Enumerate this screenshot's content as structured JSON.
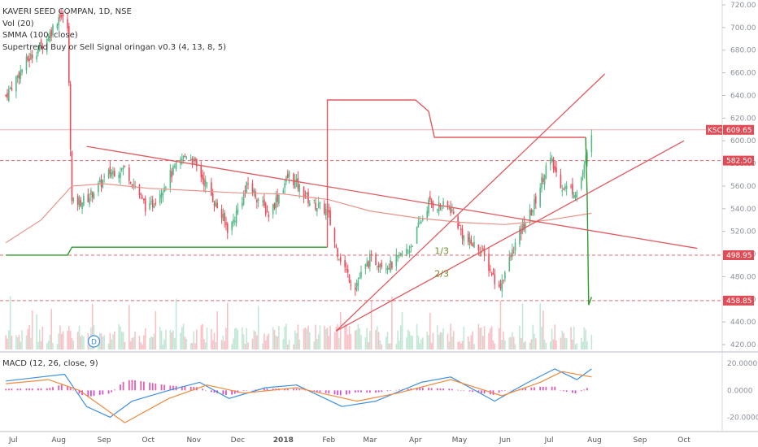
{
  "legend": {
    "title": "KAVERI SEED COMPAN, 1D, NSE",
    "vol": "Vol (20)",
    "smma": "SMMA (100, close)",
    "supertrend": "Supertrend Buy or Sell Signal oringan v0.3 (4, 13, 8, 5)"
  },
  "macd_label": "MACD (12, 26, close, 9)",
  "colors": {
    "up": "#53b987",
    "down": "#eb4d5c",
    "trendline": "#e05a5f",
    "smma": "#e8938a",
    "supertrend_up": "#2e9b2e",
    "supertrend_down": "#e05a5f",
    "macd": "#3d8fe0",
    "signal": "#f0893c",
    "hist_pos": "#e35fb0",
    "hist_neg": "#d84fd0",
    "tag_red": "#e04b55"
  },
  "annotations": {
    "fib_one_third": "1/3",
    "fib_two_third": "2/3",
    "event_marker": "D"
  },
  "price_tags": [
    {
      "label": "KSCL",
      "value": "609.65"
    },
    {
      "value": "582.50"
    },
    {
      "value": "498.95"
    },
    {
      "value": "458.85"
    }
  ],
  "chart_data": {
    "type": "candlestick",
    "symbol": "KAVERI SEED COMPAN",
    "interval": "1D",
    "exchange": "NSE",
    "x_labels": [
      "Jul",
      "Aug",
      "Sep",
      "Oct",
      "Nov",
      "Dec",
      "2018",
      "Feb",
      "Mar",
      "Apr",
      "May",
      "Jun",
      "Jul",
      "Aug",
      "Sep",
      "Oct"
    ],
    "y_ticks": [
      420,
      440,
      460,
      480,
      500,
      520,
      540,
      560,
      580,
      600,
      620,
      640,
      660,
      680,
      700,
      720
    ],
    "ylim": [
      415,
      725
    ],
    "last_price": 609.65,
    "horizontal_levels": [
      609.65,
      582.5,
      498.95,
      458.85
    ],
    "price_path": [
      [
        "2017-06-26",
        640
      ],
      [
        "2017-07-10",
        670
      ],
      [
        "2017-07-24",
        690
      ],
      [
        "2017-08-02",
        712
      ],
      [
        "2017-08-07",
        700
      ],
      [
        "2017-08-10",
        545
      ],
      [
        "2017-08-20",
        548
      ],
      [
        "2017-09-05",
        572
      ],
      [
        "2017-09-15",
        576
      ],
      [
        "2017-10-01",
        538
      ],
      [
        "2017-10-15",
        568
      ],
      [
        "2017-10-28",
        590
      ],
      [
        "2017-11-10",
        560
      ],
      [
        "2017-11-25",
        520
      ],
      [
        "2017-12-08",
        562
      ],
      [
        "2017-12-22",
        535
      ],
      [
        "2018-01-05",
        570
      ],
      [
        "2018-01-20",
        545
      ],
      [
        "2018-01-31",
        538
      ],
      [
        "2018-02-06",
        505
      ],
      [
        "2018-02-18",
        470
      ],
      [
        "2018-03-01",
        495
      ],
      [
        "2018-03-15",
        490
      ],
      [
        "2018-03-28",
        505
      ],
      [
        "2018-04-10",
        545
      ],
      [
        "2018-04-25",
        540
      ],
      [
        "2018-05-05",
        512
      ],
      [
        "2018-05-15",
        505
      ],
      [
        "2018-05-28",
        470
      ],
      [
        "2018-06-10",
        515
      ],
      [
        "2018-06-20",
        540
      ],
      [
        "2018-07-01",
        585
      ],
      [
        "2018-07-10",
        560
      ],
      [
        "2018-07-20",
        555
      ],
      [
        "2018-07-26",
        580
      ],
      [
        "2018-07-30",
        609.65
      ]
    ],
    "smma_path": [
      [
        "2017-06-26",
        510
      ],
      [
        "2017-07-20",
        530
      ],
      [
        "2017-08-10",
        560
      ],
      [
        "2017-09-01",
        562
      ],
      [
        "2017-10-01",
        558
      ],
      [
        "2017-11-01",
        556
      ],
      [
        "2017-12-01",
        554
      ],
      [
        "2018-01-01",
        553
      ],
      [
        "2018-02-01",
        548
      ],
      [
        "2018-03-01",
        538
      ],
      [
        "2018-04-01",
        532
      ],
      [
        "2018-05-01",
        528
      ],
      [
        "2018-06-01",
        526
      ],
      [
        "2018-07-01",
        530
      ],
      [
        "2018-07-30",
        536
      ]
    ],
    "supertrend_path": [
      [
        "2017-06-26",
        499
      ],
      [
        "2017-08-07",
        499
      ],
      [
        "2017-08-10",
        506
      ],
      [
        "2018-01-31",
        506
      ],
      [
        "2018-01-31",
        636
      ],
      [
        "2018-04-01",
        636
      ],
      [
        "2018-04-10",
        626
      ],
      [
        "2018-04-14",
        603
      ],
      [
        "2018-07-26",
        603
      ],
      [
        "2018-07-27",
        550
      ],
      [
        "2018-07-28",
        455
      ],
      [
        "2018-07-30",
        462
      ]
    ],
    "trendlines": [
      {
        "from": [
          "2017-08-20",
          595
        ],
        "to": [
          "2018-10-10",
          505
        ]
      },
      {
        "from": [
          "2018-02-06",
          432
        ],
        "to": [
          "2018-08-08",
          659
        ]
      },
      {
        "from": [
          "2018-02-06",
          432
        ],
        "to": [
          "2018-10-01",
          600
        ]
      }
    ],
    "macd": {
      "ticks": [
        "20.0000",
        "0.0000",
        "-20.0000"
      ],
      "ylim": [
        -30,
        28
      ],
      "macd_path": [
        [
          "2017-06-26",
          7
        ],
        [
          "2017-07-20",
          10
        ],
        [
          "2017-08-05",
          12
        ],
        [
          "2017-08-20",
          -12
        ],
        [
          "2017-09-05",
          -20
        ],
        [
          "2017-09-20",
          -8
        ],
        [
          "2017-10-15",
          0
        ],
        [
          "2017-11-05",
          6
        ],
        [
          "2017-11-25",
          -6
        ],
        [
          "2017-12-20",
          2
        ],
        [
          "2018-01-10",
          4
        ],
        [
          "2018-02-10",
          -12
        ],
        [
          "2018-03-05",
          -8
        ],
        [
          "2018-04-05",
          6
        ],
        [
          "2018-04-25",
          10
        ],
        [
          "2018-05-25",
          -8
        ],
        [
          "2018-06-15",
          5
        ],
        [
          "2018-07-05",
          16
        ],
        [
          "2018-07-20",
          8
        ],
        [
          "2018-07-30",
          16
        ]
      ],
      "signal_path": [
        [
          "2017-06-26",
          5
        ],
        [
          "2017-07-25",
          8
        ],
        [
          "2017-08-15",
          0
        ],
        [
          "2017-09-15",
          -24
        ],
        [
          "2017-10-15",
          -6
        ],
        [
          "2017-11-10",
          4
        ],
        [
          "2017-12-05",
          -2
        ],
        [
          "2018-01-10",
          2
        ],
        [
          "2018-02-20",
          -8
        ],
        [
          "2018-03-20",
          -2
        ],
        [
          "2018-04-25",
          8
        ],
        [
          "2018-05-30",
          -4
        ],
        [
          "2018-06-25",
          6
        ],
        [
          "2018-07-10",
          14
        ],
        [
          "2018-07-30",
          10
        ]
      ]
    }
  }
}
